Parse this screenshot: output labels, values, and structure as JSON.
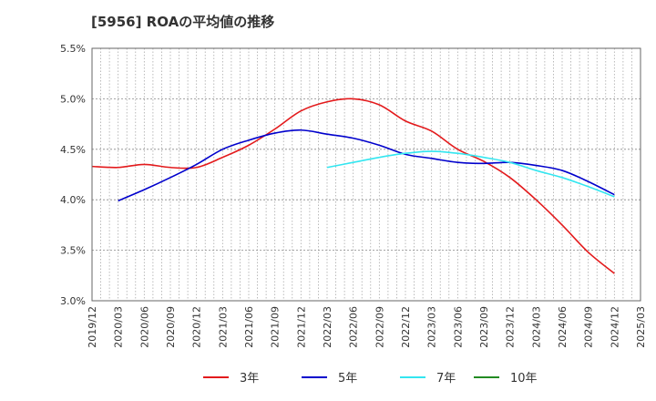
{
  "chart_data": {
    "type": "line",
    "title": "[5956]  ROAの平均値の推移",
    "xlabel": "",
    "ylabel": "",
    "grid": true,
    "legend_position": "bottom",
    "x_ticks": [
      "2019/12",
      "2020/03",
      "2020/06",
      "2020/09",
      "2020/12",
      "2021/03",
      "2021/06",
      "2021/09",
      "2021/12",
      "2022/03",
      "2022/06",
      "2022/09",
      "2022/12",
      "2023/03",
      "2023/06",
      "2023/09",
      "2023/12",
      "2024/03",
      "2024/06",
      "2024/09",
      "2024/12",
      "2025/03"
    ],
    "y_ticks": [
      "3.0%",
      "3.5%",
      "4.0%",
      "4.5%",
      "5.0%",
      "5.5%"
    ],
    "ylim": [
      3.0,
      5.5
    ],
    "y_unit": "%",
    "series": [
      {
        "name": "3年",
        "color": "#e31a1c",
        "points": [
          [
            "2019/12",
            4.33
          ],
          [
            "2020/03",
            4.32
          ],
          [
            "2020/06",
            4.35
          ],
          [
            "2020/09",
            4.32
          ],
          [
            "2020/12",
            4.32
          ],
          [
            "2021/03",
            4.42
          ],
          [
            "2021/06",
            4.54
          ],
          [
            "2021/09",
            4.7
          ],
          [
            "2021/12",
            4.88
          ],
          [
            "2022/03",
            4.97
          ],
          [
            "2022/06",
            5.0
          ],
          [
            "2022/09",
            4.94
          ],
          [
            "2022/12",
            4.78
          ],
          [
            "2023/03",
            4.68
          ],
          [
            "2023/06",
            4.5
          ],
          [
            "2023/09",
            4.38
          ],
          [
            "2023/12",
            4.22
          ],
          [
            "2024/03",
            4.0
          ],
          [
            "2024/06",
            3.75
          ],
          [
            "2024/09",
            3.48
          ],
          [
            "2024/12",
            3.27
          ]
        ]
      },
      {
        "name": "5年",
        "color": "#0000cc",
        "points": [
          [
            "2020/03",
            3.99
          ],
          [
            "2020/06",
            4.1
          ],
          [
            "2020/09",
            4.22
          ],
          [
            "2020/12",
            4.35
          ],
          [
            "2021/03",
            4.5
          ],
          [
            "2021/06",
            4.59
          ],
          [
            "2021/09",
            4.66
          ],
          [
            "2021/12",
            4.69
          ],
          [
            "2022/03",
            4.65
          ],
          [
            "2022/06",
            4.61
          ],
          [
            "2022/09",
            4.54
          ],
          [
            "2022/12",
            4.45
          ],
          [
            "2023/03",
            4.41
          ],
          [
            "2023/06",
            4.37
          ],
          [
            "2023/09",
            4.36
          ],
          [
            "2023/12",
            4.37
          ],
          [
            "2024/03",
            4.34
          ],
          [
            "2024/06",
            4.29
          ],
          [
            "2024/09",
            4.18
          ],
          [
            "2024/12",
            4.05
          ]
        ]
      },
      {
        "name": "7年",
        "color": "#33e6f0",
        "points": [
          [
            "2022/03",
            4.32
          ],
          [
            "2022/06",
            4.37
          ],
          [
            "2022/09",
            4.42
          ],
          [
            "2022/12",
            4.46
          ],
          [
            "2023/03",
            4.48
          ],
          [
            "2023/06",
            4.46
          ],
          [
            "2023/09",
            4.42
          ],
          [
            "2023/12",
            4.37
          ],
          [
            "2024/03",
            4.29
          ],
          [
            "2024/06",
            4.22
          ],
          [
            "2024/09",
            4.13
          ],
          [
            "2024/12",
            4.03
          ]
        ]
      },
      {
        "name": "10年",
        "color": "#228b22",
        "points": []
      }
    ]
  }
}
